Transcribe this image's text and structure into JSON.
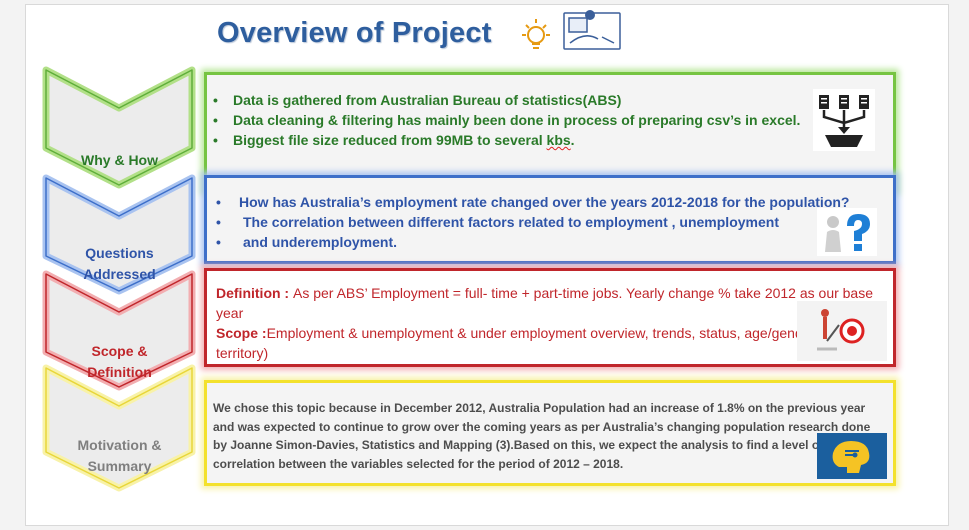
{
  "title": "Overview of Project",
  "chevrons": [
    {
      "label_line1": "Why & How",
      "label_line2": "",
      "color": "#2a7a29"
    },
    {
      "label_line1": "Questions",
      "label_line2": "Addressed",
      "color": "#2f54a8"
    },
    {
      "label_line1": "Scope &",
      "label_line2": "Definition",
      "color": "#c0262b"
    },
    {
      "label_line1": "Motivation &",
      "label_line2": "Summary",
      "color": "#7f7f7f"
    }
  ],
  "why_how": {
    "bullets": [
      "Data  is gathered from Australian Bureau of statistics(ABS)",
      "Data cleaning & filtering has mainly been done in process of preparing csv’s in excel.",
      "Biggest file size reduced from 99MB to several "
    ],
    "underlined_word": "kbs",
    "trailing": "."
  },
  "questions": {
    "bullets": [
      "How has Australia’s employment rate changed over the years 2012-2018 for the population?",
      "The correlation between different factors related to employment , unemployment",
      "and underemployment."
    ]
  },
  "scope": {
    "definition_label": "Definition : ",
    "definition_text": "As per ABS’  Employment = full- time + part-time jobs. Yearly change % take 2012 as our base year",
    "scope_label": "Scope :",
    "scope_text": "Employment & unemployment & under employment overview, trends, status, age/gender, state and territory)"
  },
  "motivation": {
    "text": "We chose this topic because in December 2012, Australia Population had an increase of 1.8% on the previous year and was expected to continue to grow over the coming years as per Australia’s changing population research done by Joanne Simon-Davies, Statistics and Mapping (3).Based on this, we expect the analysis to find a level of correlation between the variables selected for the period of 2012 – 2018."
  },
  "icons": {
    "title": "lightbulb-and-clipboard-icon",
    "why": "data-files-merge-icon",
    "questions": "person-question-mark-icon",
    "scope": "target-arrow-icon",
    "motivation": "brain-idea-icon"
  },
  "colors": {
    "title": "#2e5e9e",
    "green": "#76c442",
    "blue": "#3d6fc9",
    "red": "#c0262b",
    "yellow": "#f3e12c"
  }
}
